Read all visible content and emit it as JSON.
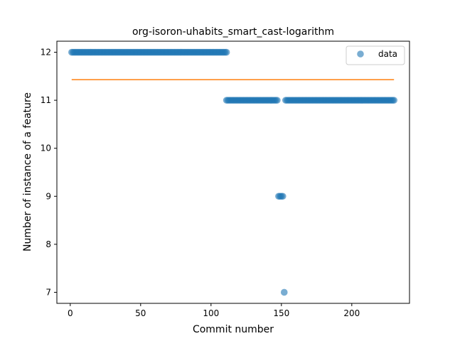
{
  "chart_data": {
    "type": "scatter",
    "title": "org-isoron-uhabits_smart_cast-logarithm",
    "xlabel": "Commit number",
    "ylabel": "Number of instance of a feature",
    "xlim": [
      -9.5,
      241
    ],
    "ylim": [
      6.77,
      12.23
    ],
    "xticks": [
      0,
      50,
      100,
      150,
      200
    ],
    "yticks": [
      7,
      8,
      9,
      10,
      11,
      12
    ],
    "grid": false,
    "legend": {
      "position": "top-right",
      "entries": [
        "data"
      ]
    },
    "colors": {
      "points": "#1f77b4",
      "line": "#ff7f0e"
    },
    "series": [
      {
        "name": "data",
        "kind": "points",
        "segments": [
          {
            "x_from": 1,
            "x_to": 111,
            "y": 12
          },
          {
            "x_from": 111,
            "x_to": 147,
            "y": 11
          },
          {
            "x_from": 148,
            "x_to": 151,
            "y": 9
          },
          {
            "x_from": 152,
            "x_to": 152,
            "y": 7
          },
          {
            "x_from": 153,
            "x_to": 230,
            "y": 11
          }
        ]
      },
      {
        "kind": "line",
        "x": [
          1,
          230
        ],
        "y": [
          11.43,
          11.43
        ]
      }
    ]
  }
}
